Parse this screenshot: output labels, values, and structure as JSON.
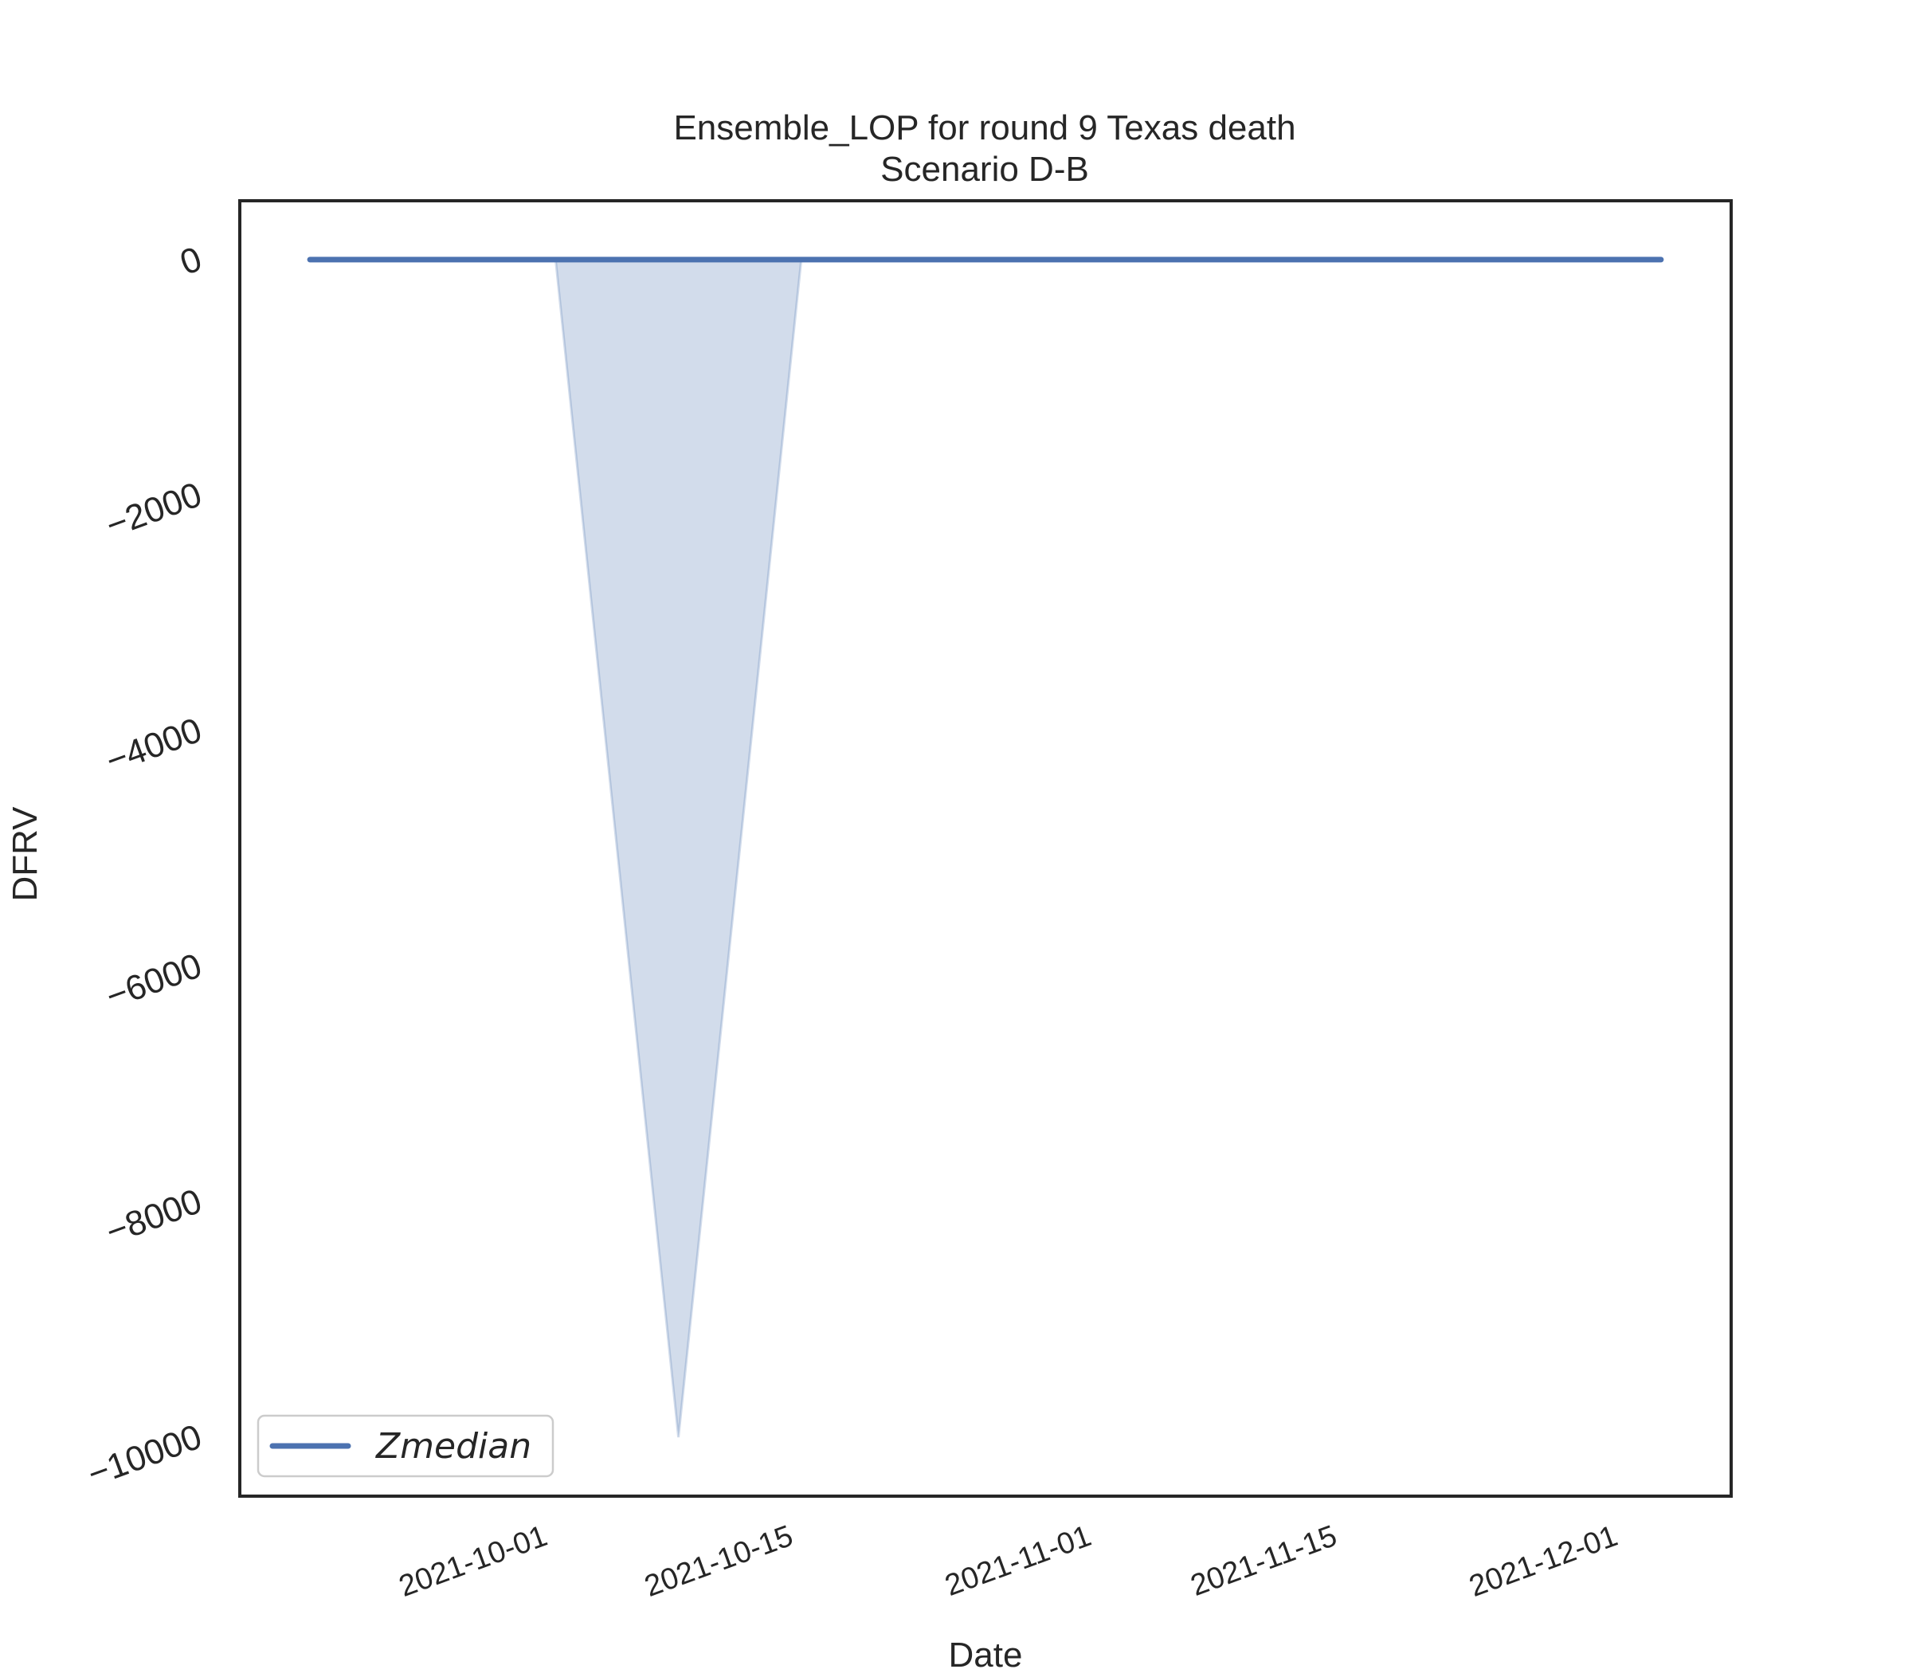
{
  "chart_data": {
    "type": "area",
    "title": "Ensemble_LOP for round 9 Texas death",
    "subtitle": "Scenario D-B",
    "xlabel": "Date",
    "ylabel": "DFRV",
    "x_tick_labels": [
      "2021-10-01",
      "2021-10-15",
      "2021-11-01",
      "2021-11-15",
      "2021-12-01"
    ],
    "y_ticks": [
      0,
      -2000,
      -4000,
      -6000,
      -8000,
      -10000
    ],
    "y_tick_labels": [
      "0",
      "−2000",
      "−4000",
      "−6000",
      "−8000",
      "−10000"
    ],
    "xlim": [
      "2021-09-14",
      "2021-12-08"
    ],
    "ylim": [
      -10500,
      500
    ],
    "grid": false,
    "legend_position": "lower-left",
    "series": [
      {
        "name": "Zmedian",
        "color": "#4c72b0",
        "x": [
          "2021-09-18",
          "2021-12-04"
        ],
        "y": [
          0,
          0
        ]
      }
    ],
    "band": {
      "color": "#4c72b0",
      "x": [
        "2021-10-02",
        "2021-10-09",
        "2021-10-16"
      ],
      "lower": [
        0,
        -10000,
        0
      ],
      "upper": [
        0,
        0,
        0
      ]
    }
  }
}
